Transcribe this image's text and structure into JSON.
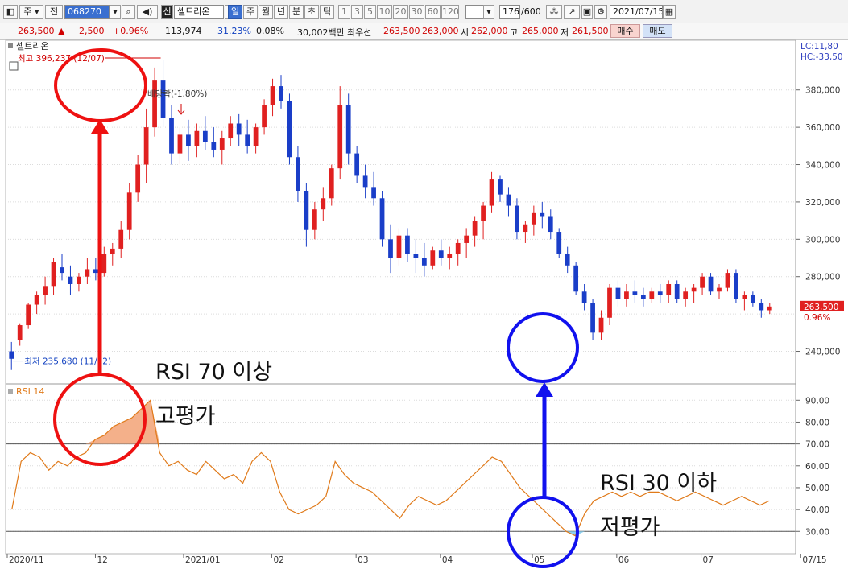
{
  "toolbar": {
    "type_label": "주",
    "scope_label": "전",
    "code": "068270",
    "stock_name_tag": "신",
    "stock_name": "셀트리온",
    "periods": [
      "일",
      "주",
      "월",
      "년",
      "분",
      "초",
      "틱"
    ],
    "active_period": "일",
    "intervals": [
      "1",
      "3",
      "5",
      "10",
      "20",
      "30",
      "60",
      "120"
    ],
    "count_value": "176",
    "count_total": "/600",
    "date": "2021/07/15"
  },
  "quote": {
    "price": "263,500",
    "change": "2,500",
    "change_pct": "+0.96%",
    "volume": "113,974",
    "vol_ratio": "31.23%",
    "turnover": "0.08%",
    "amount": "30,002백만",
    "ask_label": "최우선",
    "ask1": "263,500",
    "ask2": "263,000",
    "open_label": "시",
    "open": "262,000",
    "high_label": "고",
    "high": "265,000",
    "low_label": "저",
    "low": "261,500",
    "buy_label": "매수",
    "sell_label": "매도"
  },
  "chart_meta": {
    "price_panel_label": "셀트리온",
    "rsi_panel_label": "RSI 14",
    "lc_label": "LC:11,80",
    "hc_label": "HC:-33,50",
    "max_label": "최고 396,237 (12/07)",
    "min_label": "최저 235,680 (11/12)",
    "dividend_label": "배당락(-1.80%)",
    "current_price_tag": "263,500",
    "current_pct_tag": "0.96%",
    "y_ticks_price": [
      "380,000",
      "360,000",
      "340,000",
      "320,000",
      "300,000",
      "280,000",
      "240,000"
    ],
    "y_ticks_rsi": [
      "90,00",
      "80,00",
      "70,00",
      "60,00",
      "50,00",
      "40,00",
      "30,00"
    ],
    "x_ticks": [
      "2020/11",
      "12",
      "2021/01",
      "02",
      "03",
      "04",
      "05",
      "06",
      "07",
      "07/15"
    ]
  },
  "annotations": {
    "overbought_text": "RSI 70 이상",
    "overbought_meaning": "고평가",
    "oversold_text": "RSI 30 이하",
    "oversold_meaning": "저평가"
  },
  "colors": {
    "up": "#e02020",
    "down": "#1a3ec8",
    "rsi_line": "#e07a1a",
    "overbought_fill": "#f4b08a",
    "oversold_fill": "#8fd0ef",
    "circle_red": "#ee1111",
    "circle_blue": "#1111ee"
  },
  "chart_data": [
    {
      "type": "candlestick",
      "title": "셀트리온",
      "ylim": [
        226000,
        401000
      ],
      "y_ticks": [
        240000,
        260000,
        280000,
        300000,
        320000,
        340000,
        360000,
        380000
      ],
      "candles": [
        [
          240000,
          245000,
          230000,
          236000
        ],
        [
          246000,
          255000,
          243000,
          254000
        ],
        [
          254000,
          266000,
          252000,
          265000
        ],
        [
          265000,
          272000,
          260000,
          270000
        ],
        [
          270000,
          280000,
          265000,
          275000
        ],
        [
          275000,
          290000,
          270000,
          288000
        ],
        [
          285000,
          292000,
          278000,
          282000
        ],
        [
          280000,
          286000,
          270000,
          276000
        ],
        [
          276000,
          282000,
          272000,
          280000
        ],
        [
          280000,
          290000,
          276000,
          284000
        ],
        [
          284000,
          290000,
          278000,
          282000
        ],
        [
          282000,
          296000,
          280000,
          292000
        ],
        [
          292000,
          298000,
          286000,
          295000
        ],
        [
          295000,
          310000,
          290000,
          305000
        ],
        [
          305000,
          330000,
          300000,
          325000
        ],
        [
          325000,
          345000,
          320000,
          340000
        ],
        [
          340000,
          370000,
          330000,
          360000
        ],
        [
          360000,
          392000,
          355000,
          385000
        ],
        [
          385000,
          396000,
          360000,
          365000
        ],
        [
          365000,
          372000,
          340000,
          346000
        ],
        [
          346000,
          360000,
          340000,
          356000
        ],
        [
          356000,
          364000,
          342000,
          350000
        ],
        [
          350000,
          362000,
          344000,
          358000
        ],
        [
          358000,
          366000,
          348000,
          352000
        ],
        [
          352000,
          360000,
          344000,
          348000
        ],
        [
          348000,
          358000,
          340000,
          354000
        ],
        [
          354000,
          366000,
          350000,
          362000
        ],
        [
          362000,
          367000,
          350000,
          356000
        ],
        [
          356000,
          364000,
          346000,
          350000
        ],
        [
          350000,
          362000,
          346000,
          360000
        ],
        [
          360000,
          375000,
          356000,
          372000
        ],
        [
          372000,
          386000,
          366000,
          382000
        ],
        [
          382000,
          388000,
          370000,
          374000
        ],
        [
          374000,
          378000,
          340000,
          344000
        ],
        [
          344000,
          350000,
          320000,
          326000
        ],
        [
          326000,
          330000,
          296000,
          305000
        ],
        [
          305000,
          320000,
          300000,
          316000
        ],
        [
          316000,
          328000,
          310000,
          322000
        ],
        [
          322000,
          340000,
          318000,
          338000
        ],
        [
          338000,
          382000,
          332000,
          372000
        ],
        [
          372000,
          378000,
          340000,
          346000
        ],
        [
          346000,
          350000,
          330000,
          334000
        ],
        [
          334000,
          340000,
          322000,
          328000
        ],
        [
          328000,
          336000,
          318000,
          322000
        ],
        [
          322000,
          326000,
          296000,
          300000
        ],
        [
          300000,
          308000,
          282000,
          290000
        ],
        [
          290000,
          306000,
          286000,
          302000
        ],
        [
          302000,
          306000,
          288000,
          292000
        ],
        [
          292000,
          300000,
          282000,
          290000
        ],
        [
          290000,
          298000,
          280000,
          286000
        ],
        [
          286000,
          296000,
          284000,
          294000
        ],
        [
          294000,
          300000,
          286000,
          290000
        ],
        [
          290000,
          296000,
          284000,
          292000
        ],
        [
          292000,
          300000,
          286000,
          298000
        ],
        [
          298000,
          306000,
          290000,
          302000
        ],
        [
          302000,
          312000,
          296000,
          310000
        ],
        [
          310000,
          320000,
          300000,
          318000
        ],
        [
          318000,
          336000,
          314000,
          332000
        ],
        [
          332000,
          334000,
          320000,
          324000
        ],
        [
          324000,
          328000,
          312000,
          318000
        ],
        [
          318000,
          322000,
          300000,
          304000
        ],
        [
          304000,
          310000,
          298000,
          308000
        ],
        [
          308000,
          318000,
          302000,
          314000
        ],
        [
          314000,
          320000,
          306000,
          312000
        ],
        [
          312000,
          316000,
          300000,
          304000
        ],
        [
          304000,
          306000,
          290000,
          292000
        ],
        [
          292000,
          296000,
          282000,
          286000
        ],
        [
          286000,
          288000,
          270000,
          272000
        ],
        [
          272000,
          276000,
          262000,
          266000
        ],
        [
          266000,
          268000,
          246000,
          250000
        ],
        [
          250000,
          262000,
          246000,
          258000
        ],
        [
          258000,
          276000,
          254000,
          274000
        ],
        [
          274000,
          278000,
          264000,
          268000
        ],
        [
          268000,
          276000,
          264000,
          272000
        ],
        [
          272000,
          278000,
          266000,
          270000
        ],
        [
          270000,
          274000,
          264000,
          268000
        ],
        [
          268000,
          274000,
          266000,
          272000
        ],
        [
          272000,
          276000,
          266000,
          270000
        ],
        [
          270000,
          278000,
          266000,
          276000
        ],
        [
          276000,
          278000,
          266000,
          268000
        ],
        [
          268000,
          274000,
          264000,
          272000
        ],
        [
          272000,
          276000,
          266000,
          274000
        ],
        [
          274000,
          282000,
          270000,
          280000
        ],
        [
          280000,
          282000,
          270000,
          272000
        ],
        [
          272000,
          276000,
          268000,
          274000
        ],
        [
          274000,
          284000,
          272000,
          282000
        ],
        [
          282000,
          284000,
          266000,
          268000
        ],
        [
          268000,
          272000,
          262000,
          270000
        ],
        [
          270000,
          272000,
          264000,
          266000
        ],
        [
          266000,
          268000,
          258000,
          262000
        ],
        [
          262000,
          266000,
          260000,
          264000
        ]
      ]
    },
    {
      "type": "line",
      "title": "RSI 14",
      "ylim": [
        22,
        96
      ],
      "y_ticks": [
        30,
        40,
        50,
        60,
        70,
        80,
        90
      ],
      "series": [
        {
          "values": [
            40,
            62,
            66,
            64,
            58,
            62,
            60,
            64,
            66,
            72,
            74,
            78,
            80,
            82,
            86,
            90,
            66,
            60,
            62,
            58,
            56,
            62,
            58,
            54,
            56,
            52,
            62,
            66,
            62,
            48,
            40,
            38,
            40,
            42,
            46,
            62,
            56,
            52,
            50,
            48,
            44,
            40,
            36,
            42,
            46,
            44,
            42,
            44,
            48,
            52,
            56,
            60,
            64,
            62,
            56,
            50,
            46,
            42,
            38,
            34,
            30,
            28,
            38,
            44,
            46,
            48,
            46,
            48,
            46,
            48,
            48,
            46,
            44,
            46,
            48,
            46,
            44,
            42,
            44,
            46,
            44,
            42,
            44
          ]
        }
      ],
      "reference_lines": [
        70,
        30
      ]
    }
  ]
}
